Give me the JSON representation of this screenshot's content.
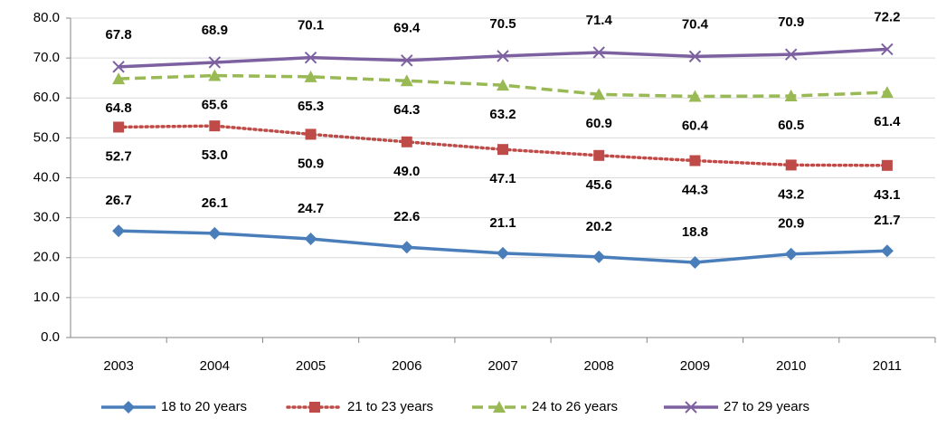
{
  "chart_data": {
    "type": "line",
    "categories": [
      "2003",
      "2004",
      "2005",
      "2006",
      "2007",
      "2008",
      "2009",
      "2010",
      "2011"
    ],
    "ylim": [
      0,
      80
    ],
    "yticks": [
      {
        "value": 0,
        "label": "0.0"
      },
      {
        "value": 10,
        "label": "10.0"
      },
      {
        "value": 20,
        "label": "20.0"
      },
      {
        "value": 30,
        "label": "30.0"
      },
      {
        "value": 40,
        "label": "40.0"
      },
      {
        "value": 50,
        "label": "50.0"
      },
      {
        "value": 60,
        "label": "60.0"
      },
      {
        "value": 70,
        "label": "70.0"
      },
      {
        "value": 80,
        "label": "80.0"
      }
    ],
    "grid": true,
    "legend": "bottom",
    "series": [
      {
        "name": "18 to 20 years",
        "color": "#4a7ebb",
        "marker": "diamond",
        "dash": "solid",
        "values": [
          26.7,
          26.1,
          24.7,
          22.6,
          21.1,
          20.2,
          18.8,
          20.9,
          21.7
        ],
        "value_labels": [
          "26.7",
          "26.1",
          "24.7",
          "22.6",
          "21.1",
          "20.2",
          "18.8",
          "20.9",
          "21.7"
        ]
      },
      {
        "name": "21 to 23 years",
        "color": "#be4b48",
        "marker": "square",
        "dash": "dotted",
        "values": [
          52.7,
          53.0,
          50.9,
          49.0,
          47.1,
          45.6,
          44.3,
          43.2,
          43.1
        ],
        "value_labels": [
          "52.7",
          "53.0",
          "50.9",
          "49.0",
          "47.1",
          "45.6",
          "44.3",
          "43.2",
          "43.1"
        ]
      },
      {
        "name": "24 to 26 years",
        "color": "#98b954",
        "marker": "triangle",
        "dash": "dashed",
        "values": [
          64.8,
          65.6,
          65.3,
          64.3,
          63.2,
          60.9,
          60.4,
          60.5,
          61.4
        ],
        "value_labels": [
          "64.8",
          "65.6",
          "65.3",
          "64.3",
          "63.2",
          "60.9",
          "60.4",
          "60.5",
          "61.4"
        ]
      },
      {
        "name": "27 to 29 years",
        "color": "#7d60a0",
        "marker": "x",
        "dash": "solid",
        "values": [
          67.8,
          68.9,
          70.1,
          69.4,
          70.5,
          71.4,
          70.4,
          70.9,
          72.2
        ],
        "value_labels": [
          "67.8",
          "68.9",
          "70.1",
          "69.4",
          "70.5",
          "71.4",
          "70.4",
          "70.9",
          "72.2"
        ]
      }
    ]
  }
}
